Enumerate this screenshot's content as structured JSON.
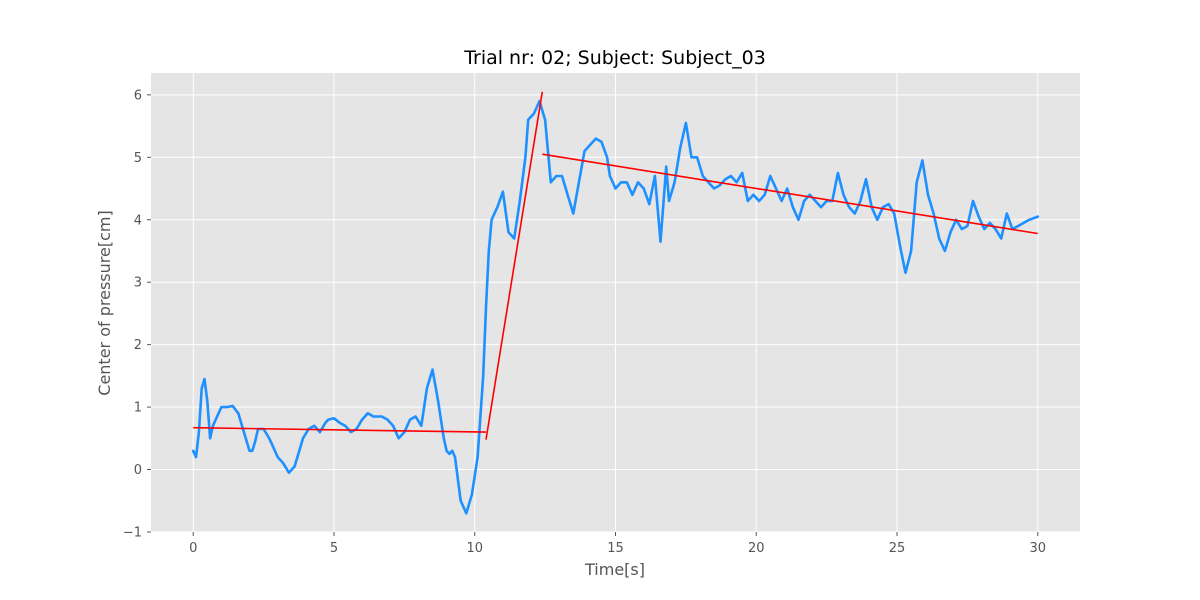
{
  "chart_data": {
    "type": "line",
    "title": "Trial nr: 02;  Subject: Subject_03",
    "xlabel": "Time[s]",
    "ylabel": "Center of pressure[cm]",
    "xlim": [
      -1.5,
      31.5
    ],
    "ylim": [
      -1.0,
      6.35
    ],
    "x_ticks": [
      0,
      5,
      10,
      15,
      20,
      25,
      30
    ],
    "y_ticks": [
      -1,
      0,
      1,
      2,
      3,
      4,
      5,
      6
    ],
    "x_tick_labels": [
      "0",
      "5",
      "10",
      "15",
      "20",
      "25",
      "30"
    ],
    "y_tick_labels": [
      "−1",
      "0",
      "1",
      "2",
      "3",
      "4",
      "5",
      "6"
    ],
    "grid": true,
    "background": "#e5e5e5",
    "series": [
      {
        "color": "#1e90ff",
        "x": [
          0.0,
          0.1,
          0.2,
          0.3,
          0.4,
          0.5,
          0.6,
          0.7,
          0.8,
          1.0,
          1.2,
          1.4,
          1.6,
          1.8,
          2.0,
          2.1,
          2.2,
          2.3,
          2.5,
          2.7,
          2.8,
          3.0,
          3.2,
          3.4,
          3.6,
          3.7,
          3.9,
          4.1,
          4.3,
          4.5,
          4.7,
          4.8,
          5.0,
          5.2,
          5.4,
          5.6,
          5.8,
          6.0,
          6.2,
          6.4,
          6.7,
          6.9,
          7.1,
          7.3,
          7.5,
          7.7,
          7.9,
          8.1,
          8.3,
          8.5,
          8.7,
          8.9,
          9.0,
          9.1,
          9.2,
          9.3,
          9.5,
          9.7,
          9.9,
          10.1,
          10.3,
          10.4,
          10.5,
          10.6,
          10.7,
          10.8,
          11.0,
          11.2,
          11.4,
          11.6,
          11.8,
          11.9,
          12.1,
          12.3,
          12.5,
          12.7,
          12.9,
          13.1,
          13.3,
          13.5,
          13.7,
          13.9,
          14.1,
          14.3,
          14.5,
          14.7,
          14.8,
          15.0,
          15.2,
          15.4,
          15.6,
          15.8,
          16.0,
          16.2,
          16.4,
          16.6,
          16.8,
          16.9,
          17.1,
          17.3,
          17.5,
          17.7,
          17.9,
          18.1,
          18.3,
          18.5,
          18.7,
          18.9,
          19.1,
          19.3,
          19.5,
          19.7,
          19.9,
          20.1,
          20.3,
          20.5,
          20.7,
          20.9,
          21.1,
          21.3,
          21.5,
          21.7,
          21.9,
          22.1,
          22.3,
          22.5,
          22.7,
          22.9,
          23.1,
          23.3,
          23.5,
          23.7,
          23.9,
          24.1,
          24.3,
          24.5,
          24.7,
          24.9,
          25.1,
          25.3,
          25.5,
          25.7,
          25.9,
          26.1,
          26.3,
          26.5,
          26.7,
          26.9,
          27.1,
          27.3,
          27.5,
          27.7,
          27.9,
          28.1,
          28.3,
          28.5,
          28.7,
          28.9,
          29.1,
          29.3,
          29.5,
          29.7,
          30.0
        ],
        "y": [
          0.3,
          0.2,
          0.6,
          1.3,
          1.45,
          1.1,
          0.5,
          0.7,
          0.8,
          1.0,
          1.0,
          1.02,
          0.9,
          0.6,
          0.3,
          0.3,
          0.45,
          0.65,
          0.65,
          0.5,
          0.4,
          0.2,
          0.1,
          -0.05,
          0.05,
          0.2,
          0.5,
          0.65,
          0.7,
          0.6,
          0.75,
          0.8,
          0.82,
          0.75,
          0.7,
          0.6,
          0.65,
          0.8,
          0.9,
          0.85,
          0.85,
          0.8,
          0.7,
          0.5,
          0.6,
          0.8,
          0.85,
          0.7,
          1.3,
          1.6,
          1.1,
          0.5,
          0.3,
          0.25,
          0.3,
          0.2,
          -0.5,
          -0.7,
          -0.4,
          0.2,
          1.5,
          2.6,
          3.5,
          4.0,
          4.1,
          4.2,
          4.45,
          3.8,
          3.7,
          4.3,
          5.0,
          5.6,
          5.7,
          5.9,
          5.6,
          4.6,
          4.7,
          4.7,
          4.4,
          4.1,
          4.6,
          5.1,
          5.2,
          5.3,
          5.25,
          5.0,
          4.7,
          4.5,
          4.6,
          4.6,
          4.4,
          4.6,
          4.5,
          4.25,
          4.7,
          3.65,
          4.85,
          4.3,
          4.6,
          5.15,
          5.55,
          5.0,
          5.0,
          4.7,
          4.6,
          4.5,
          4.55,
          4.65,
          4.7,
          4.6,
          4.75,
          4.3,
          4.4,
          4.3,
          4.4,
          4.7,
          4.5,
          4.3,
          4.5,
          4.2,
          4.0,
          4.3,
          4.4,
          4.3,
          4.2,
          4.3,
          4.3,
          4.75,
          4.4,
          4.2,
          4.1,
          4.3,
          4.65,
          4.2,
          4.0,
          4.2,
          4.25,
          4.1,
          3.6,
          3.15,
          3.5,
          4.6,
          4.95,
          4.4,
          4.1,
          3.7,
          3.5,
          3.8,
          4.0,
          3.85,
          3.9,
          4.3,
          4.05,
          3.85,
          3.95,
          3.85,
          3.7,
          4.1,
          3.85,
          3.9,
          3.95,
          4.0,
          4.05
        ],
        "width": 2.6
      },
      {
        "color": "#ff0000",
        "x": [
          0.0,
          10.4,
          10.4,
          12.4,
          12.4,
          30.0
        ],
        "y": [
          0.67,
          0.6,
          0.48,
          6.05,
          5.05,
          3.78
        ],
        "width": 1.6
      }
    ]
  }
}
